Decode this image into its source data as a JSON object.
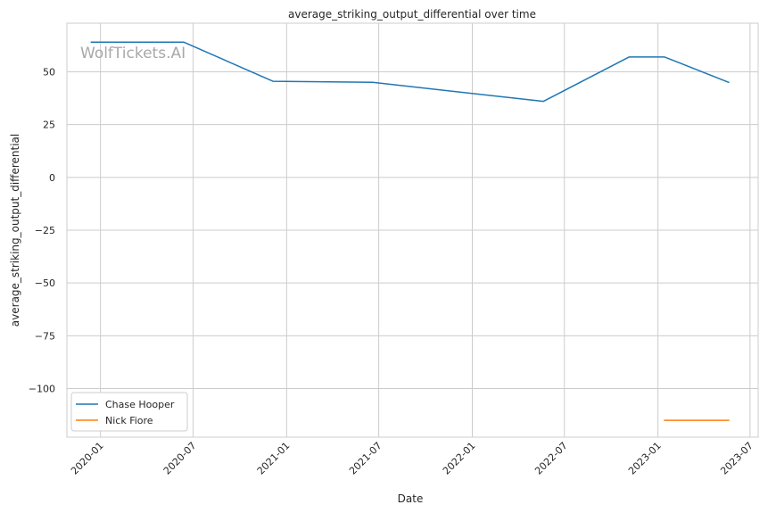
{
  "chart_data": {
    "type": "line",
    "title": "average_striking_output_differential over time",
    "xlabel": "Date",
    "ylabel": "average_striking_output_differential",
    "watermark": "WolfTickets.AI",
    "x_tick_labels": [
      "2020-01",
      "2020-07",
      "2021-01",
      "2021-07",
      "2022-01",
      "2022-07",
      "2023-01",
      "2023-07"
    ],
    "y_ticks": [
      50,
      25,
      0,
      -25,
      -50,
      -75,
      -100
    ],
    "y_tick_labels": [
      "50",
      "25",
      "0",
      "−25",
      "−50",
      "−75",
      "−100"
    ],
    "xlim": [
      "2019-10-27",
      "2023-07-17"
    ],
    "ylim": [
      -123,
      73
    ],
    "grid": true,
    "legend_position": "lower-left",
    "series": [
      {
        "name": "Chase Hooper",
        "color": "#1f77b4",
        "x": [
          "2019-12-14",
          "2020-06-13",
          "2020-12-05",
          "2021-06-19",
          "2022-05-21",
          "2022-11-05",
          "2023-01-14",
          "2023-05-20"
        ],
        "values": [
          64,
          64,
          45.5,
          45,
          36,
          57,
          57,
          45
        ]
      },
      {
        "name": "Nick Fiore",
        "color": "#ff7f0e",
        "x": [
          "2023-01-14",
          "2023-05-20"
        ],
        "values": [
          -115,
          -115
        ]
      }
    ]
  }
}
